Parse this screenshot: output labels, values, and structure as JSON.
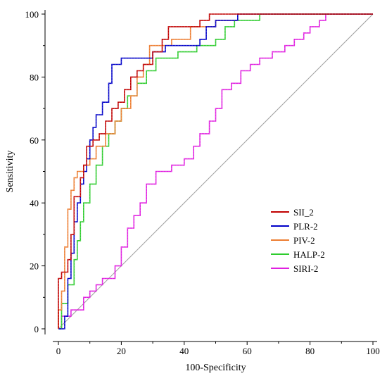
{
  "chart_data": {
    "type": "line",
    "xlabel": "100-Specificity",
    "ylabel": "Sensitivity",
    "xlim": [
      0,
      100
    ],
    "ylim": [
      0,
      100
    ],
    "x_ticks": [
      "0",
      "20",
      "40",
      "60",
      "80",
      "100"
    ],
    "y_ticks": [
      "0",
      "20",
      "40",
      "60",
      "80",
      "100"
    ],
    "grid": false,
    "legend_position": "lower-right",
    "reference_line": {
      "x": [
        0,
        100
      ],
      "y": [
        0,
        100
      ],
      "color": "#a0a0a0"
    },
    "series": [
      {
        "name": "SII_2",
        "color": "#c00000",
        "x": [
          0,
          0,
          1,
          1,
          3,
          3,
          4,
          4,
          5,
          5,
          7,
          7,
          8,
          8,
          9,
          9,
          11,
          11,
          13,
          13,
          15,
          15,
          17,
          17,
          19,
          19,
          21,
          21,
          23,
          23,
          25,
          25,
          27,
          27,
          30,
          30,
          33,
          33,
          35,
          35,
          40,
          40,
          45,
          45,
          48,
          48,
          100
        ],
        "y": [
          0,
          16,
          16,
          18,
          18,
          22,
          22,
          30,
          30,
          42,
          42,
          48,
          48,
          52,
          52,
          58,
          58,
          60,
          60,
          62,
          62,
          66,
          66,
          70,
          70,
          72,
          72,
          76,
          76,
          80,
          80,
          82,
          82,
          84,
          84,
          88,
          88,
          92,
          92,
          96,
          96,
          96,
          96,
          98,
          98,
          100,
          100
        ]
      },
      {
        "name": "PLR-2",
        "color": "#0000c8",
        "x": [
          0,
          2,
          2,
          3,
          3,
          4,
          4,
          5,
          5,
          6,
          6,
          7,
          7,
          8,
          8,
          9,
          9,
          10,
          10,
          11,
          11,
          12,
          12,
          14,
          14,
          16,
          16,
          17,
          17,
          20,
          20,
          22,
          22,
          30,
          30,
          34,
          34,
          38,
          38,
          45,
          45,
          47,
          47,
          50,
          50,
          55,
          55,
          57,
          57,
          100
        ],
        "y": [
          0,
          0,
          4,
          4,
          16,
          16,
          24,
          24,
          34,
          34,
          40,
          40,
          46,
          46,
          50,
          50,
          54,
          54,
          60,
          60,
          64,
          64,
          68,
          68,
          72,
          72,
          78,
          78,
          84,
          84,
          86,
          86,
          86,
          86,
          88,
          88,
          90,
          90,
          90,
          90,
          92,
          92,
          96,
          96,
          98,
          98,
          98,
          98,
          100,
          100
        ]
      },
      {
        "name": "PIV-2",
        "color": "#ed7d31",
        "x": [
          0,
          0,
          1,
          1,
          2,
          2,
          3,
          3,
          4,
          4,
          5,
          5,
          6,
          6,
          8,
          8,
          10,
          10,
          12,
          12,
          15,
          15,
          18,
          18,
          20,
          20,
          23,
          23,
          25,
          25,
          27,
          27,
          29,
          29,
          32,
          32,
          36,
          36,
          42,
          42,
          46,
          46,
          50,
          50,
          57,
          57,
          100
        ],
        "y": [
          0,
          6,
          6,
          12,
          12,
          26,
          26,
          38,
          38,
          44,
          44,
          48,
          48,
          50,
          50,
          52,
          52,
          54,
          54,
          58,
          58,
          62,
          62,
          66,
          66,
          70,
          70,
          74,
          74,
          80,
          80,
          84,
          84,
          90,
          90,
          90,
          90,
          92,
          92,
          96,
          96,
          96,
          96,
          98,
          98,
          100,
          100
        ]
      },
      {
        "name": "HALP-2",
        "color": "#2ecc2e",
        "x": [
          0,
          1,
          1,
          3,
          3,
          5,
          5,
          6,
          6,
          7,
          7,
          8,
          8,
          10,
          10,
          12,
          12,
          14,
          14,
          16,
          16,
          18,
          18,
          20,
          20,
          22,
          22,
          25,
          25,
          28,
          28,
          31,
          31,
          38,
          38,
          44,
          44,
          50,
          50,
          53,
          53,
          56,
          56,
          64,
          64,
          100
        ],
        "y": [
          0,
          0,
          8,
          8,
          14,
          14,
          22,
          22,
          28,
          28,
          34,
          34,
          40,
          40,
          46,
          46,
          52,
          52,
          58,
          58,
          62,
          62,
          66,
          66,
          70,
          70,
          74,
          74,
          78,
          78,
          82,
          82,
          86,
          86,
          88,
          88,
          90,
          90,
          92,
          92,
          96,
          96,
          98,
          98,
          100,
          100
        ]
      },
      {
        "name": "SIRI-2",
        "color": "#e020e0",
        "x": [
          0,
          1,
          1,
          4,
          4,
          8,
          8,
          10,
          10,
          12,
          12,
          14,
          14,
          18,
          18,
          20,
          20,
          22,
          22,
          24,
          24,
          26,
          26,
          28,
          28,
          31,
          31,
          36,
          36,
          40,
          40,
          43,
          43,
          45,
          45,
          48,
          48,
          50,
          50,
          52,
          52,
          55,
          55,
          58,
          58,
          61,
          61,
          64,
          64,
          68,
          68,
          72,
          72,
          75,
          75,
          78,
          78,
          80,
          80,
          83,
          83,
          85,
          85,
          100
        ],
        "y": [
          0,
          0,
          4,
          4,
          6,
          6,
          10,
          10,
          12,
          12,
          14,
          14,
          16,
          16,
          20,
          20,
          26,
          26,
          32,
          32,
          36,
          36,
          40,
          40,
          46,
          46,
          50,
          50,
          52,
          52,
          54,
          54,
          58,
          58,
          62,
          62,
          66,
          66,
          70,
          70,
          76,
          76,
          78,
          78,
          82,
          82,
          84,
          84,
          86,
          86,
          88,
          88,
          90,
          90,
          92,
          92,
          94,
          94,
          96,
          96,
          98,
          98,
          100,
          100
        ]
      }
    ]
  }
}
